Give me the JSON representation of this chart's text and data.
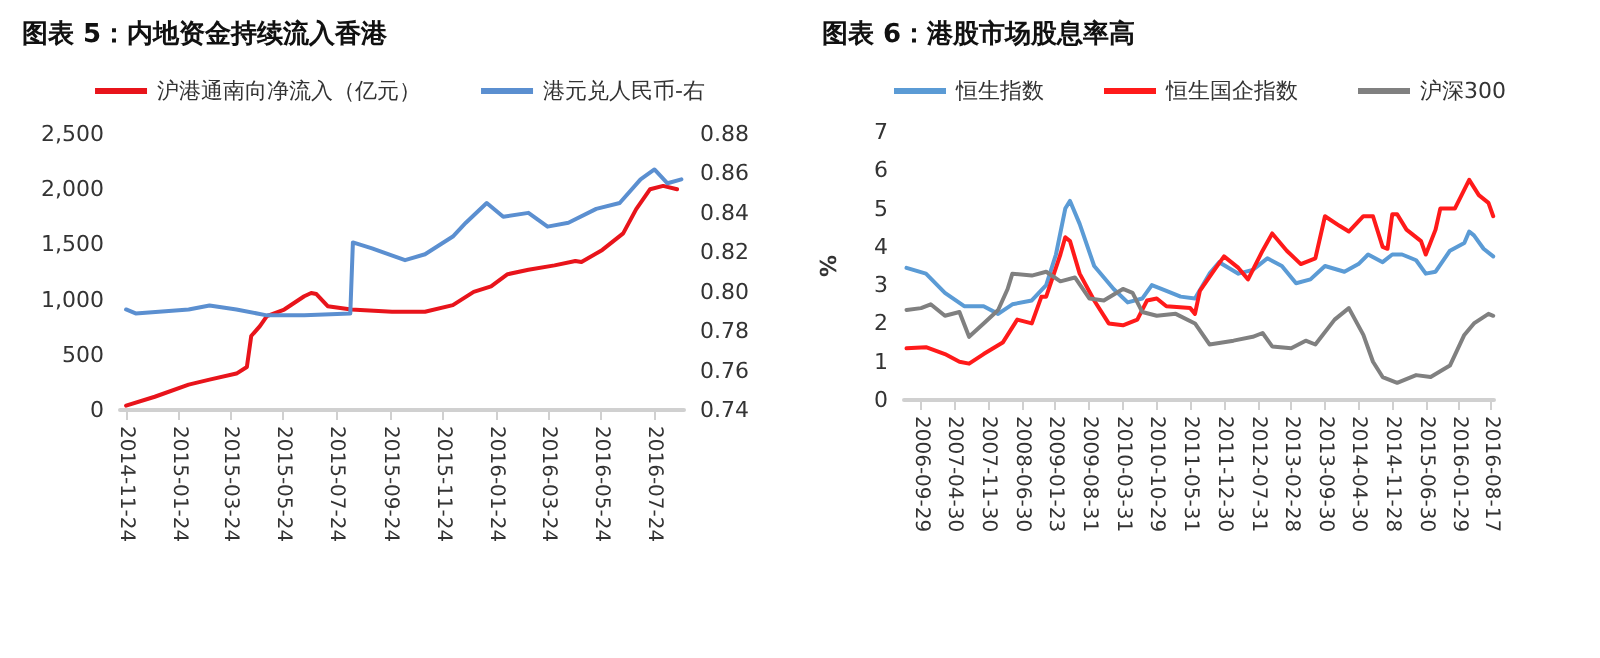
{
  "chart_data": [
    {
      "type": "line",
      "title": "图表 5：内地资金持续流入香港",
      "legend": "top",
      "grid": false,
      "xlim": [
        "2014-11-17",
        "2016-08-27"
      ],
      "xticks": [
        "2014-11-24",
        "2015-01-24",
        "2015-03-24",
        "2015-05-24",
        "2015-07-24",
        "2015-09-24",
        "2015-11-24",
        "2016-01-24",
        "2016-03-24",
        "2016-05-24",
        "2016-07-24"
      ],
      "ylim": [
        0,
        2500
      ],
      "yticks": [
        0,
        {
          "value": 500,
          "label": "500"
        },
        {
          "value": 1000,
          "label": "1,000"
        },
        {
          "value": 1500,
          "label": "1,500"
        },
        {
          "value": 2000,
          "label": "2,000"
        },
        {
          "value": 2500,
          "label": "2,500"
        }
      ],
      "y2lim": [
        0.74,
        0.88
      ],
      "y2ticks": [
        {
          "value": 0.74,
          "label": "0.74"
        },
        {
          "value": 0.76,
          "label": "0.76"
        },
        {
          "value": 0.78,
          "label": "0.78"
        },
        {
          "value": 0.8,
          "label": "0.80"
        },
        {
          "value": 0.82,
          "label": "0.82"
        },
        {
          "value": 0.84,
          "label": "0.84"
        },
        {
          "value": 0.86,
          "label": "0.86"
        },
        {
          "value": 0.88,
          "label": "0.88"
        }
      ],
      "series": [
        {
          "name": "沪港通南向净流入（亿元）",
          "color": "#e8141b",
          "x": [
            "2014-11-24",
            "2014-12-27",
            "2015-02-04",
            "2015-02-28",
            "2015-03-31",
            "2015-04-12",
            "2015-04-17",
            "2015-04-27",
            "2015-05-05",
            "2015-05-25",
            "2015-06-17",
            "2015-06-25",
            "2015-07-01",
            "2015-07-14",
            "2015-08-10",
            "2015-09-26",
            "2015-11-03",
            "2015-12-05",
            "2015-12-29",
            "2016-01-18",
            "2016-02-06",
            "2016-03-01",
            "2016-03-31",
            "2016-04-24",
            "2016-05-01",
            "2016-05-25",
            "2016-06-18",
            "2016-07-03",
            "2016-07-19",
            "2016-08-03",
            "2016-08-19"
          ],
          "values": [
            40,
            120,
            230,
            275,
            330,
            390,
            670,
            760,
            850,
            910,
            1030,
            1060,
            1050,
            940,
            910,
            890,
            890,
            950,
            1070,
            1120,
            1230,
            1270,
            1310,
            1350,
            1340,
            1450,
            1600,
            1820,
            2000,
            2030,
            2000
          ]
        },
        {
          "name": "港元兑人民币-右",
          "color": "#5b8fd0",
          "axis": "y2",
          "x": [
            "2014-11-24",
            "2014-12-05",
            "2015-02-04",
            "2015-02-28",
            "2015-03-31",
            "2015-05-05",
            "2015-06-17",
            "2015-08-09",
            "2015-08-12",
            "2015-09-03",
            "2015-10-11",
            "2015-11-03",
            "2015-12-05",
            "2015-12-20",
            "2016-01-13",
            "2016-02-01",
            "2016-03-01",
            "2016-03-23",
            "2016-04-16",
            "2016-05-18",
            "2016-06-14",
            "2016-07-08",
            "2016-07-24",
            "2016-08-08",
            "2016-08-24"
          ],
          "values": [
            0.791,
            0.789,
            0.791,
            0.793,
            0.791,
            0.788,
            0.788,
            0.789,
            0.825,
            0.822,
            0.816,
            0.819,
            0.828,
            0.835,
            0.845,
            0.838,
            0.84,
            0.833,
            0.835,
            0.842,
            0.845,
            0.857,
            0.862,
            0.855,
            0.857
          ]
        }
      ]
    },
    {
      "type": "line",
      "title": "图表 6：港股市场股息率高",
      "legend": "top",
      "grid": false,
      "ylabel": "%",
      "xlim": [
        "2006-06-15",
        "2016-09-05"
      ],
      "xticks": [
        "2006-09-29",
        "2007-04-30",
        "2007-11-30",
        "2008-06-30",
        "2009-01-23",
        "2009-08-31",
        "2010-03-31",
        "2010-10-29",
        "2011-05-31",
        "2011-12-30",
        "2012-07-31",
        "2013-02-28",
        "2013-09-30",
        "2014-04-30",
        "2014-11-28",
        "2015-06-30",
        "2016-01-29",
        "2016-08-17"
      ],
      "ylim": [
        0,
        7
      ],
      "yticks": [
        0,
        1,
        2,
        3,
        4,
        5,
        6,
        7
      ],
      "series": [
        {
          "name": "恒生指数",
          "color": "#5b9bd5",
          "x": [
            "2006-07",
            "2006-11",
            "2007-03",
            "2007-07",
            "2007-11",
            "2008-02",
            "2008-05",
            "2008-09",
            "2008-12",
            "2009-02",
            "2009-04",
            "2009-05",
            "2009-07",
            "2009-10",
            "2010-02",
            "2010-05",
            "2010-08",
            "2010-10",
            "2011-01",
            "2011-04",
            "2011-07",
            "2011-10",
            "2011-12",
            "2012-04",
            "2012-07",
            "2012-10",
            "2013-01",
            "2013-04",
            "2013-07",
            "2013-10",
            "2014-02",
            "2014-05",
            "2014-07",
            "2014-10",
            "2014-12",
            "2015-02",
            "2015-05",
            "2015-07",
            "2015-09",
            "2015-12",
            "2016-03",
            "2016-04",
            "2016-05",
            "2016-07",
            "2016-08-31"
          ],
          "values": [
            3.45,
            3.3,
            2.8,
            2.45,
            2.45,
            2.25,
            2.5,
            2.6,
            3.0,
            3.8,
            5.0,
            5.2,
            4.6,
            3.5,
            2.9,
            2.55,
            2.65,
            3.0,
            2.85,
            2.7,
            2.65,
            3.3,
            3.6,
            3.3,
            3.4,
            3.7,
            3.5,
            3.05,
            3.15,
            3.5,
            3.35,
            3.55,
            3.8,
            3.6,
            3.8,
            3.8,
            3.65,
            3.3,
            3.35,
            3.9,
            4.1,
            4.4,
            4.3,
            3.95,
            3.75
          ]
        },
        {
          "name": "恒生国企指数",
          "color": "#ff1a1a",
          "x": [
            "2006-07",
            "2006-11",
            "2007-03",
            "2007-06",
            "2007-08",
            "2007-11",
            "2008-03",
            "2008-06",
            "2008-09",
            "2008-11",
            "2008-12",
            "2009-03",
            "2009-04",
            "2009-05",
            "2009-07",
            "2009-10",
            "2010-01",
            "2010-04",
            "2010-07",
            "2010-09",
            "2010-11",
            "2011-01",
            "2011-06",
            "2011-07",
            "2011-08",
            "2011-11",
            "2012-01",
            "2012-04",
            "2012-06",
            "2012-09",
            "2012-11",
            "2013-02",
            "2013-05",
            "2013-08",
            "2013-10",
            "2014-01",
            "2014-03",
            "2014-06",
            "2014-08",
            "2014-10",
            "2014-11",
            "2014-12",
            "2015-01",
            "2015-03",
            "2015-06",
            "2015-07",
            "2015-09",
            "2015-10",
            "2016-01",
            "2016-04",
            "2016-06",
            "2016-08",
            "2016-08-31"
          ],
          "values": [
            1.35,
            1.38,
            1.2,
            1.0,
            0.95,
            1.2,
            1.5,
            2.1,
            2.0,
            2.7,
            2.7,
            3.8,
            4.25,
            4.15,
            3.3,
            2.6,
            2.0,
            1.95,
            2.1,
            2.6,
            2.65,
            2.45,
            2.4,
            2.25,
            2.85,
            3.4,
            3.75,
            3.45,
            3.15,
            3.9,
            4.35,
            3.9,
            3.55,
            3.7,
            4.8,
            4.55,
            4.4,
            4.8,
            4.8,
            4.0,
            3.95,
            4.85,
            4.85,
            4.45,
            4.15,
            3.8,
            4.45,
            5.0,
            5.0,
            5.75,
            5.35,
            5.15,
            4.8
          ]
        },
        {
          "name": "沪深300",
          "color": "#808080",
          "x": [
            "2006-07",
            "2006-10",
            "2006-12",
            "2007-03",
            "2007-06",
            "2007-08",
            "2007-11",
            "2008-02",
            "2008-04",
            "2008-05",
            "2008-09",
            "2008-12",
            "2009-03",
            "2009-06",
            "2009-09",
            "2009-12",
            "2010-04",
            "2010-06",
            "2010-08",
            "2010-11",
            "2011-03",
            "2011-07",
            "2011-10",
            "2012-03",
            "2012-07",
            "2012-09",
            "2012-11",
            "2013-03",
            "2013-06",
            "2013-08",
            "2013-12",
            "2014-03",
            "2014-06",
            "2014-08",
            "2014-10",
            "2015-01",
            "2015-05",
            "2015-08",
            "2015-12",
            "2016-03",
            "2016-05",
            "2016-08",
            "2016-08-31"
          ],
          "values": [
            2.35,
            2.4,
            2.5,
            2.2,
            2.3,
            1.65,
            2.0,
            2.35,
            2.9,
            3.3,
            3.25,
            3.35,
            3.1,
            3.2,
            2.65,
            2.6,
            2.9,
            2.8,
            2.3,
            2.2,
            2.25,
            2.0,
            1.45,
            1.55,
            1.65,
            1.75,
            1.4,
            1.35,
            1.55,
            1.45,
            2.1,
            2.4,
            1.7,
            1.0,
            0.6,
            0.45,
            0.65,
            0.6,
            0.9,
            1.7,
            2.0,
            2.25,
            2.2
          ]
        }
      ]
    }
  ]
}
